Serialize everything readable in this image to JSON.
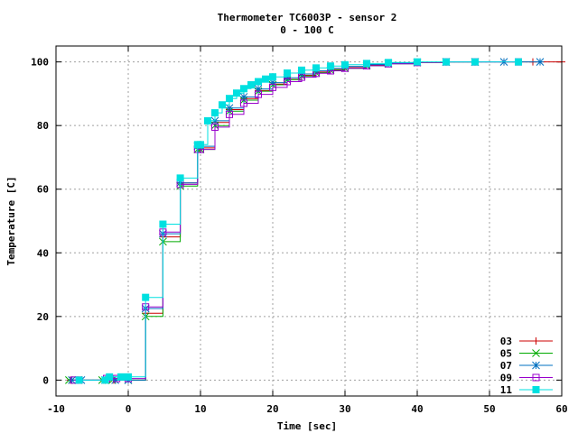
{
  "chart_data": {
    "type": "line",
    "title": "Thermometer TC6003P - sensor 2",
    "subtitle": "0 - 100 C",
    "xlabel": "Time [sec]",
    "ylabel": "Temperature [C]",
    "xlim": [
      -10,
      60
    ],
    "ylim": [
      -5,
      105
    ],
    "xticks": [
      -10,
      0,
      10,
      20,
      30,
      40,
      50,
      60
    ],
    "yticks": [
      0,
      20,
      40,
      60,
      80,
      100
    ],
    "xtick_labels": [
      "-10",
      "0",
      "10",
      "20",
      "30",
      "40",
      "50",
      "60"
    ],
    "ytick_labels": [
      "0",
      "20",
      "40",
      "60",
      "80",
      "100"
    ],
    "grid": true,
    "legend_position": "bottom-right",
    "series": [
      {
        "name": "03",
        "color": "#cc0000",
        "marker": "plus",
        "x": [
          -8.0,
          -6.7,
          -3.4,
          -2.0,
          0.0,
          2.4,
          4.8,
          7.2,
          9.6,
          10.0,
          12.0,
          14.0,
          16.0,
          18.0,
          20.0,
          22.0,
          24.0,
          26.0,
          28.0,
          30.0,
          33.0,
          36.0,
          40.0,
          44.0,
          48.0,
          52.0,
          56.0,
          60.0
        ],
        "y": [
          0,
          0,
          0,
          0,
          0,
          21,
          45,
          62,
          73,
          73,
          81,
          85,
          88.5,
          91,
          93,
          94.5,
          95.8,
          96.8,
          97.6,
          98.2,
          99,
          99.5,
          99.8,
          100,
          100,
          100,
          100,
          100
        ]
      },
      {
        "name": "05",
        "color": "#00aa00",
        "marker": "cross",
        "x": [
          -8.2,
          -6.9,
          -3.6,
          -2.2,
          0.0,
          2.4,
          4.8,
          7.2,
          9.6,
          10.0,
          12.0,
          14.0,
          16.0,
          18.0,
          20.0,
          22.0,
          24.0,
          26.0,
          28.0,
          30.0,
          33.0,
          36.0,
          40.0,
          44.0,
          48.0
        ],
        "y": [
          0,
          0,
          0,
          0,
          0,
          20,
          43.5,
          61,
          72.5,
          72.5,
          80,
          84.5,
          88,
          90.8,
          92.8,
          94.4,
          95.6,
          96.6,
          97.4,
          98,
          98.8,
          99.4,
          99.8,
          100,
          100
        ]
      },
      {
        "name": "07",
        "color": "#0070c0",
        "marker": "star",
        "x": [
          -7.8,
          -6.5,
          -3.2,
          -1.8,
          0.0,
          2.4,
          4.8,
          7.2,
          9.6,
          10.0,
          12.0,
          14.0,
          16.0,
          18.0,
          20.0,
          22.0,
          24.0,
          26.0,
          28.0,
          30.0,
          33.0,
          36.0,
          40.0,
          44.0,
          48.0,
          52.0,
          57.0
        ],
        "y": [
          0,
          0,
          0,
          0,
          0,
          22.5,
          46,
          62,
          73.5,
          73.5,
          81.5,
          85.5,
          89,
          91.5,
          93.5,
          95,
          96.2,
          97.2,
          98,
          98.6,
          99.2,
          99.6,
          99.9,
          100,
          100,
          100,
          100
        ]
      },
      {
        "name": "09",
        "color": "#9900cc",
        "marker": "square",
        "x": [
          -7.5,
          -6.8,
          -3.0,
          -1.6,
          0.0,
          2.4,
          4.8,
          7.2,
          9.6,
          10.0,
          12.0,
          14.0,
          16.0,
          18.0,
          20.0,
          22.0,
          24.0,
          26.0,
          28.0,
          30.0,
          33.0,
          36.0,
          40.0,
          44.0,
          48.0,
          54.0
        ],
        "y": [
          0,
          0,
          0.5,
          0.5,
          0.5,
          23,
          46.5,
          61.5,
          72.5,
          72.5,
          79.5,
          83.5,
          87,
          89.8,
          92,
          93.8,
          95.2,
          96.4,
          97.2,
          98,
          98.8,
          99.4,
          99.8,
          100,
          100,
          100
        ]
      },
      {
        "name": "11",
        "color": "#00e0e0",
        "marker": "filled-square",
        "x": [
          -6.8,
          -3.2,
          -2.6,
          -1.0,
          0.0,
          2.4,
          4.8,
          7.2,
          9.6,
          10.0,
          11.0,
          12.0,
          13.0,
          14.0,
          15.0,
          16.0,
          17.0,
          18.0,
          19.0,
          20.0,
          22.0,
          24.0,
          26.0,
          28.0,
          30.0,
          33.0,
          36.0,
          40.0,
          44.0,
          48.0,
          54.0
        ],
        "y": [
          0,
          0,
          1,
          1,
          1,
          26,
          49,
          63.5,
          74,
          74,
          81.5,
          84,
          86.5,
          88.5,
          90.2,
          91.6,
          92.8,
          93.8,
          94.6,
          95.3,
          96.5,
          97.4,
          98.1,
          98.7,
          99.1,
          99.5,
          99.8,
          100,
          100,
          100,
          100
        ]
      }
    ]
  }
}
